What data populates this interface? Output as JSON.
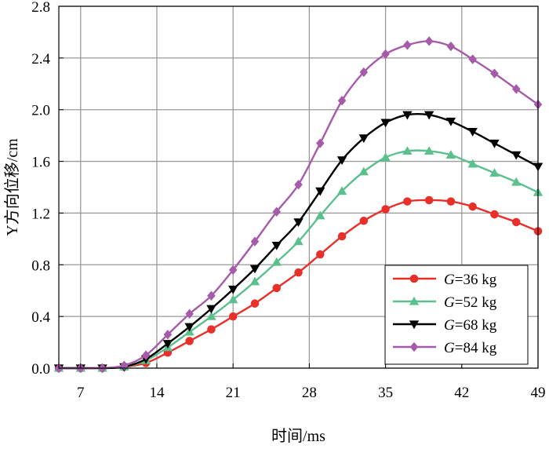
{
  "chart_data": {
    "type": "line",
    "xlabel": "时间/ms",
    "ylabel": "Y方向位移/cm",
    "xlim": [
      5,
      49
    ],
    "ylim": [
      0.0,
      2.8
    ],
    "xticks": [
      "7",
      "14",
      "21",
      "28",
      "35",
      "42",
      "49"
    ],
    "yticks": [
      "0.0",
      "0.4",
      "0.8",
      "1.2",
      "1.6",
      "2.0",
      "2.4",
      "2.8"
    ],
    "grid": true,
    "legend_position": "bottom-right",
    "x": [
      5,
      7,
      9,
      11,
      13,
      15,
      17,
      19,
      21,
      23,
      25,
      27,
      29,
      31,
      33,
      35,
      37,
      39,
      41,
      43,
      45,
      47,
      49
    ],
    "series": [
      {
        "name_var": "G",
        "name_rest": "=36 kg",
        "color": "#e8302a",
        "marker": "circle",
        "values": [
          0.0,
          0.0,
          0.0,
          0.01,
          0.04,
          0.12,
          0.21,
          0.3,
          0.4,
          0.5,
          0.62,
          0.74,
          0.88,
          1.02,
          1.14,
          1.23,
          1.29,
          1.3,
          1.29,
          1.25,
          1.19,
          1.13,
          1.06
        ]
      },
      {
        "name_var": "G",
        "name_rest": "=52 kg",
        "color": "#5cc08e",
        "marker": "triangle-up",
        "values": [
          0.0,
          0.0,
          0.0,
          0.01,
          0.06,
          0.16,
          0.28,
          0.4,
          0.53,
          0.67,
          0.82,
          0.98,
          1.18,
          1.37,
          1.52,
          1.63,
          1.68,
          1.68,
          1.65,
          1.58,
          1.51,
          1.44,
          1.36
        ]
      },
      {
        "name_var": "G",
        "name_rest": "=68 kg",
        "color": "#000000",
        "marker": "triangle-down",
        "values": [
          0.0,
          0.0,
          0.0,
          0.01,
          0.07,
          0.19,
          0.32,
          0.46,
          0.61,
          0.77,
          0.95,
          1.13,
          1.37,
          1.61,
          1.78,
          1.9,
          1.96,
          1.96,
          1.91,
          1.83,
          1.74,
          1.65,
          1.56
        ]
      },
      {
        "name_var": "G",
        "name_rest": "=84 kg",
        "color": "#a65aaa",
        "marker": "diamond",
        "values": [
          0.0,
          0.0,
          0.0,
          0.02,
          0.1,
          0.26,
          0.42,
          0.56,
          0.76,
          0.98,
          1.21,
          1.42,
          1.74,
          2.07,
          2.29,
          2.43,
          2.5,
          2.53,
          2.49,
          2.39,
          2.28,
          2.16,
          2.04
        ]
      }
    ]
  }
}
